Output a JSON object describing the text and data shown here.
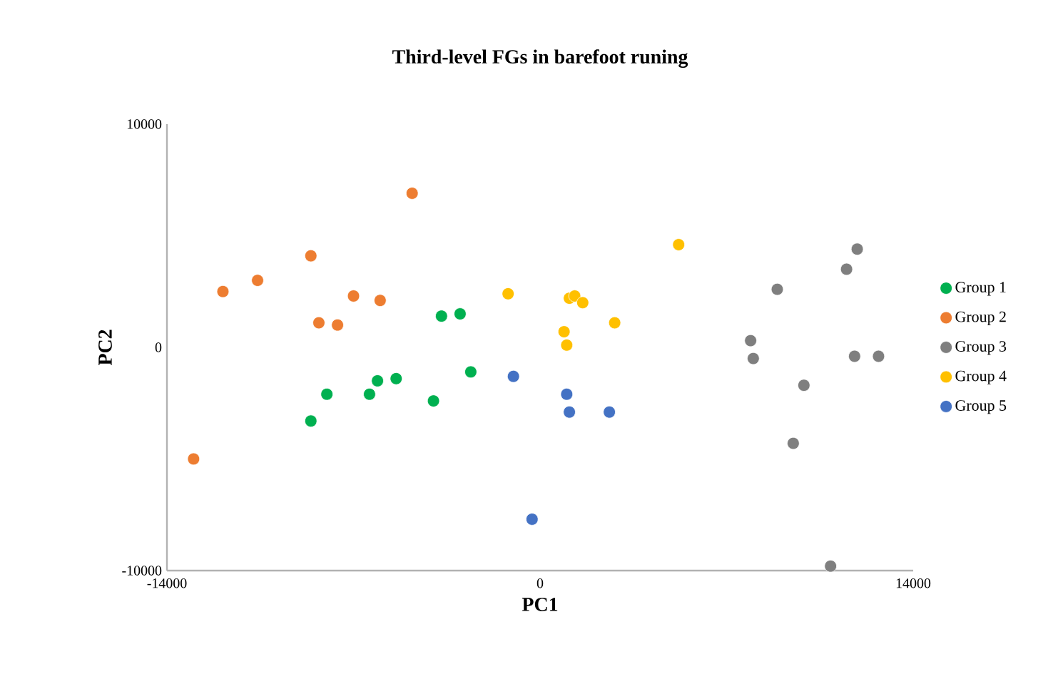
{
  "chart_data": {
    "type": "scatter",
    "title": "Third-level FGs in barefoot runing",
    "xlabel": "PC1",
    "ylabel": "PC2",
    "xlim": [
      -14000,
      14000
    ],
    "ylim": [
      -10000,
      10000
    ],
    "xticks": [
      -14000,
      0,
      14000
    ],
    "yticks": [
      -10000,
      0,
      10000
    ],
    "grid": false,
    "legend": "right",
    "series": [
      {
        "name": "Group 1",
        "color": "#00b050",
        "x": [
          -3700,
          -3000,
          -2600,
          -4000,
          -5400,
          -6100,
          -6400,
          -8000,
          -8600
        ],
        "values": [
          1400,
          1500,
          -1100,
          -2400,
          -1400,
          -1500,
          -2100,
          -2100,
          -3300
        ]
      },
      {
        "name": "Group 2",
        "color": "#ed7d31",
        "x": [
          -13000,
          -11900,
          -10600,
          -8600,
          -8300,
          -7600,
          -7000,
          -6000,
          -4800
        ],
        "values": [
          -5000,
          2500,
          3000,
          4100,
          1100,
          1000,
          2300,
          2100,
          6900
        ]
      },
      {
        "name": "Group 3",
        "color": "#7f7f7f",
        "x": [
          7900,
          8000,
          8900,
          9500,
          9900,
          10900,
          11500,
          11900,
          11800,
          12700
        ],
        "values": [
          300,
          -500,
          2600,
          -4300,
          -1700,
          -9800,
          3500,
          4400,
          -400,
          -400
        ]
      },
      {
        "name": "Group 4",
        "color": "#ffc000",
        "x": [
          -1200,
          900,
          1000,
          1100,
          1300,
          1600,
          2800,
          5200
        ],
        "values": [
          2400,
          700,
          100,
          2200,
          2300,
          2000,
          1100,
          4600
        ]
      },
      {
        "name": "Group 5",
        "color": "#4472c4",
        "x": [
          -1000,
          1000,
          1100,
          2600,
          -300
        ],
        "values": [
          -1300,
          -2100,
          -2900,
          -2900,
          -7700
        ]
      }
    ]
  }
}
